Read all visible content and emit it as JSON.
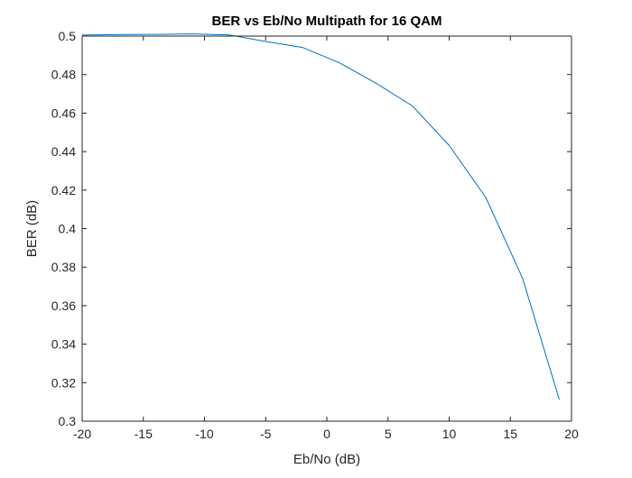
{
  "chart_data": {
    "type": "line",
    "title": "BER vs Eb/No Multipath for 16 QAM",
    "xlabel": "Eb/No (dB)",
    "ylabel": "BER (dB)",
    "xlim": [
      -20,
      20
    ],
    "ylim": [
      0.3,
      0.5
    ],
    "xticks": [
      -20,
      -15,
      -10,
      -5,
      0,
      5,
      10,
      15,
      20
    ],
    "yticks": [
      0.3,
      0.32,
      0.34,
      0.36,
      0.38,
      0.4,
      0.42,
      0.44,
      0.46,
      0.48,
      0.5
    ],
    "xtick_labels": [
      "-20",
      "-15",
      "-10",
      "-5",
      "0",
      "5",
      "10",
      "15",
      "20"
    ],
    "ytick_labels": [
      "0.3",
      "0.32",
      "0.34",
      "0.36",
      "0.38",
      "0.4",
      "0.42",
      "0.44",
      "0.46",
      "0.48",
      "0.5"
    ],
    "grid": false,
    "box": true,
    "series": [
      {
        "color": "#0072BD",
        "x": [
          -20,
          -17,
          -14,
          -11,
          -8,
          -5,
          -2,
          1,
          4,
          7,
          10,
          13,
          16,
          19
        ],
        "y": [
          0.5005,
          0.5008,
          0.5009,
          0.5011,
          0.5006,
          0.4972,
          0.4941,
          0.4862,
          0.4756,
          0.4637,
          0.4432,
          0.4161,
          0.3742,
          0.3113
        ]
      }
    ]
  }
}
